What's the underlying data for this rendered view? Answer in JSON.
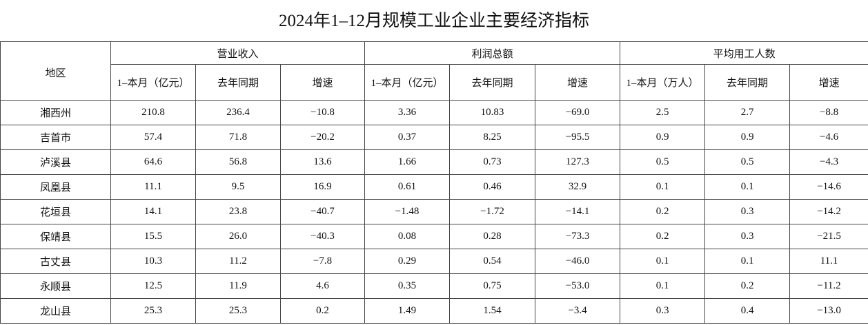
{
  "title": "2024年1–12月规模工业企业主要经济指标",
  "table": {
    "corner": "地区",
    "groups": [
      "营业收入",
      "利润总额",
      "平均用工人数"
    ],
    "subheaders": [
      "1–本月（亿元）",
      "去年同期",
      "增速",
      "1–本月（亿元）",
      "去年同期",
      "增速",
      "1–本月（万人）",
      "去年同期",
      "增速"
    ],
    "rows": [
      [
        "湘西州",
        "210.8",
        "236.4",
        "−10.8",
        "3.36",
        "10.83",
        "−69.0",
        "2.5",
        "2.7",
        "−8.8"
      ],
      [
        "吉首市",
        "57.4",
        "71.8",
        "−20.2",
        "0.37",
        "8.25",
        "−95.5",
        "0.9",
        "0.9",
        "−4.6"
      ],
      [
        "泸溪县",
        "64.6",
        "56.8",
        "13.6",
        "1.66",
        "0.73",
        "127.3",
        "0.5",
        "0.5",
        "−4.3"
      ],
      [
        "凤凰县",
        "11.1",
        "9.5",
        "16.9",
        "0.61",
        "0.46",
        "32.9",
        "0.1",
        "0.1",
        "−14.6"
      ],
      [
        "花垣县",
        "14.1",
        "23.8",
        "−40.7",
        "−1.48",
        "−1.72",
        "−14.1",
        "0.2",
        "0.3",
        "−14.2"
      ],
      [
        "保靖县",
        "15.5",
        "26.0",
        "−40.3",
        "0.08",
        "0.28",
        "−73.3",
        "0.2",
        "0.3",
        "−21.5"
      ],
      [
        "古丈县",
        "10.3",
        "11.2",
        "−7.8",
        "0.29",
        "0.54",
        "−46.0",
        "0.1",
        "0.1",
        "11.1"
      ],
      [
        "永顺县",
        "12.5",
        "11.9",
        "4.6",
        "0.35",
        "0.75",
        "−53.0",
        "0.1",
        "0.2",
        "−11.2"
      ],
      [
        "龙山县",
        "25.3",
        "25.3",
        "0.2",
        "1.49",
        "1.54",
        "−3.4",
        "0.3",
        "0.4",
        "−13.0"
      ]
    ]
  }
}
